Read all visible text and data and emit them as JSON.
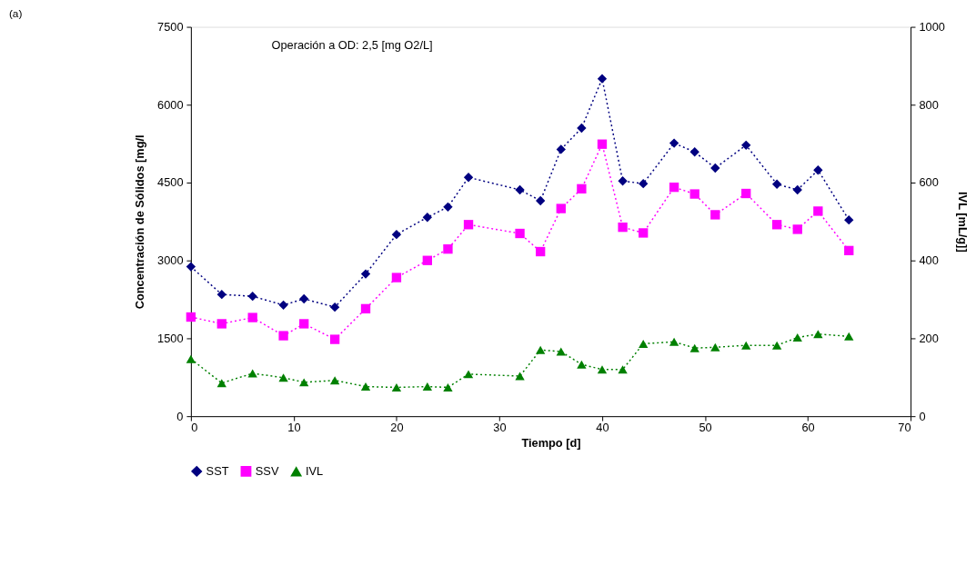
{
  "chart_data": {
    "type": "line",
    "title": "(a)",
    "xlabel": "Tiempo [d]",
    "ylabel": "Concentración de Sólidos [mg/l",
    "y2label": "IVL [mL/g]]",
    "annotations": [
      "Operación a OD: 2,5 [mg O2/L]"
    ],
    "x": [
      0,
      3,
      6,
      9,
      11,
      14,
      17,
      20,
      23,
      25,
      27,
      32,
      34,
      36,
      38,
      40,
      42,
      44,
      47,
      49,
      51,
      54,
      57,
      59,
      61,
      64
    ],
    "series": [
      {
        "name": "SST",
        "color": "#000080",
        "marker": "diamond",
        "values": [
          2880,
          2345,
          2310,
          2140,
          2260,
          2100,
          2740,
          3500,
          3830,
          4030,
          4600,
          4360,
          4150,
          5140,
          5550,
          6500,
          4530,
          4480,
          5260,
          5090,
          4780,
          5220,
          4470,
          4360,
          4740,
          3780
        ]
      },
      {
        "name": "SSV",
        "color": "#ff00ff",
        "marker": "square",
        "values": [
          1910,
          1780,
          1900,
          1550,
          1780,
          1480,
          2070,
          2670,
          3000,
          3220,
          3690,
          3520,
          3170,
          4000,
          4380,
          5240,
          3640,
          3530,
          4410,
          4280,
          3880,
          4290,
          3690,
          3600,
          3950,
          3190
        ]
      },
      {
        "name": "IVL",
        "color": "#008000",
        "marker": "triangle",
        "axis": "y2",
        "values": [
          147,
          85,
          110,
          99,
          87,
          92,
          76,
          74,
          76,
          74,
          108,
          103,
          170,
          166,
          133,
          120,
          120,
          186,
          191,
          175,
          177,
          182,
          182,
          202,
          211,
          205
        ]
      }
    ],
    "xlim": [
      0,
      70
    ],
    "xticks": [
      0,
      10,
      20,
      30,
      40,
      50,
      60,
      70
    ],
    "ylim": [
      0,
      7500
    ],
    "yticks": [
      0,
      1500,
      3000,
      4500,
      6000,
      7500
    ],
    "y2lim": [
      0,
      1000
    ],
    "y2ticks": [
      0,
      200,
      400,
      600,
      800,
      1000
    ],
    "line_style": "dotted",
    "grid": false,
    "legend": "bottom"
  }
}
